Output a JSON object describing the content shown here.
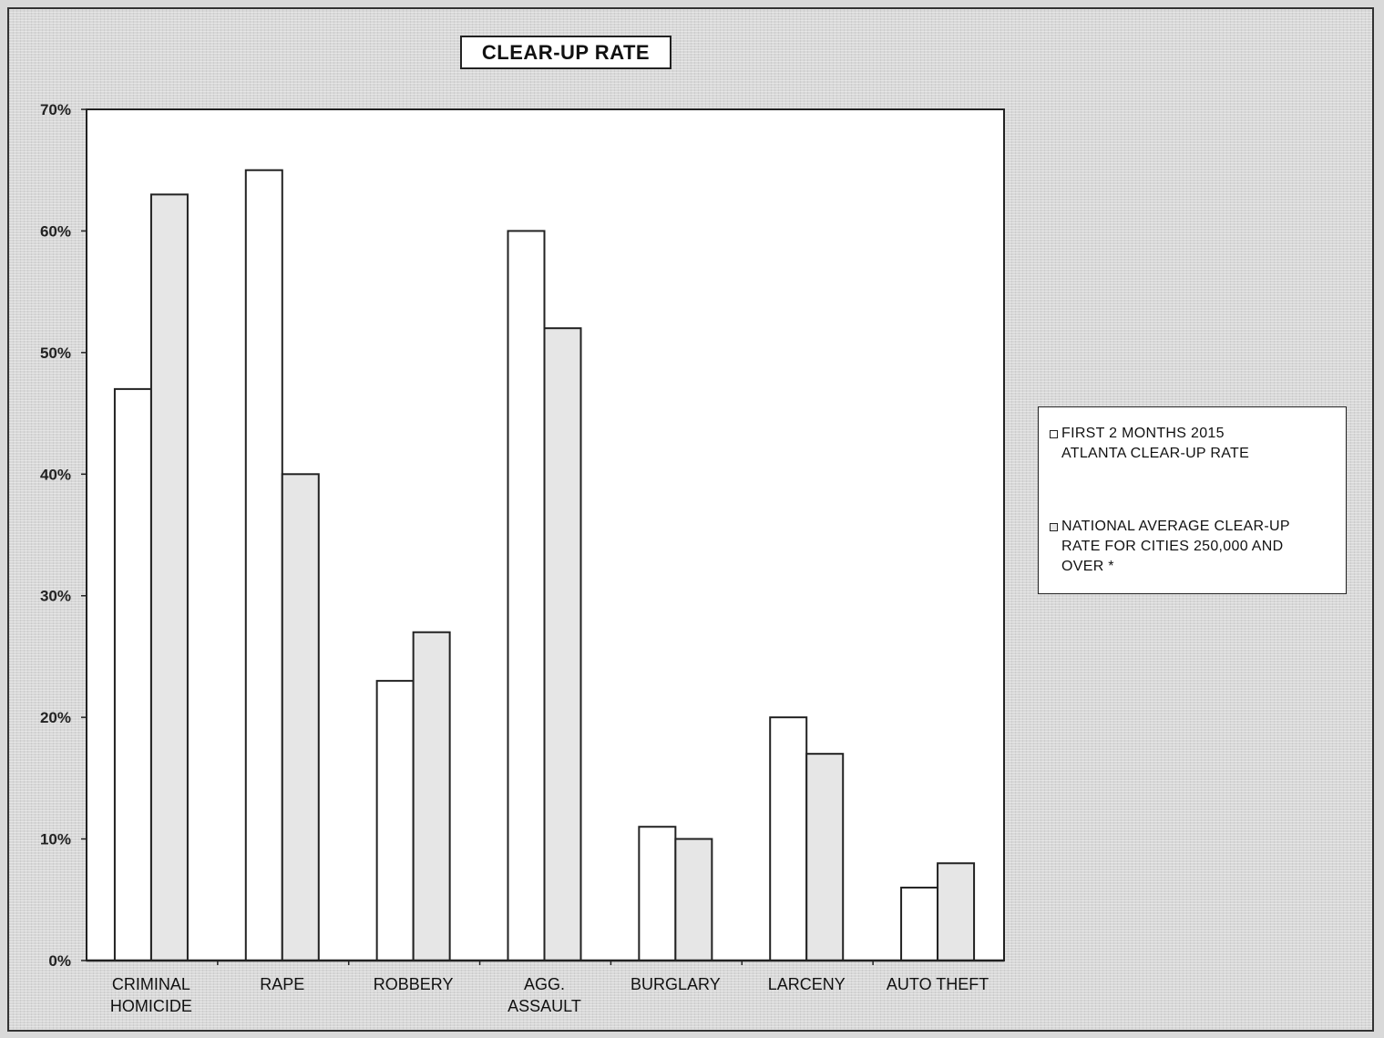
{
  "chart_data": {
    "type": "bar",
    "title": "CLEAR-UP RATE",
    "categories": [
      "CRIMINAL\nHOMICIDE",
      "RAPE",
      "ROBBERY",
      "AGG.\nASSAULT",
      "BURGLARY",
      "LARCENY",
      "AUTO THEFT"
    ],
    "series": [
      {
        "name": "FIRST 2 MONTHS 2015\nATLANTA CLEAR-UP RATE",
        "values": [
          47,
          65,
          23,
          60,
          11,
          20,
          6
        ],
        "color": "#ffffff"
      },
      {
        "name": "NATIONAL AVERAGE CLEAR-UP\nRATE FOR CITIES 250,000 AND\nOVER *",
        "values": [
          63,
          40,
          27,
          52,
          10,
          17,
          8
        ],
        "color": "#e6e6e6"
      }
    ],
    "ylim": [
      0,
      70
    ],
    "yticks": [
      "0%",
      "10%",
      "20%",
      "30%",
      "40%",
      "50%",
      "60%",
      "70%"
    ],
    "xlabel": "",
    "ylabel": "",
    "legend_position": "right",
    "grid": false
  }
}
